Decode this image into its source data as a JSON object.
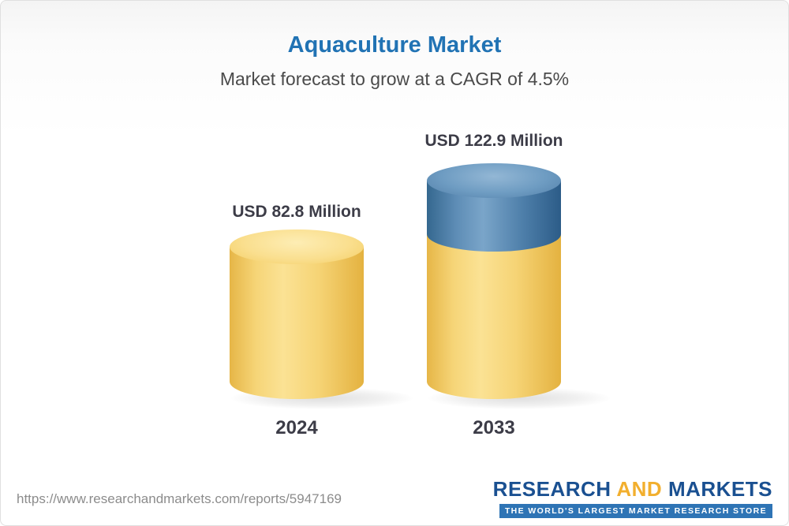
{
  "chart_data": {
    "type": "bar",
    "title": "Aquaculture Market",
    "subtitle": "Market forecast to grow at a CAGR of 4.5%",
    "cagr": "4.5%",
    "unit": "USD Million",
    "categories": [
      "2024",
      "2033"
    ],
    "values": [
      82.8,
      122.9
    ],
    "value_labels": [
      "USD 82.8 Million",
      "USD 122.9 Million"
    ],
    "legend_position": "none",
    "grid": false,
    "colors": {
      "title": "#2173b4",
      "bar_base": "#f5d376",
      "bar_growth": "#5e8db6",
      "label_text": "#3c3c47"
    }
  },
  "footer": {
    "url": "https://www.researchandmarkets.com/reports/5947169",
    "logo": {
      "word1": "RESEARCH",
      "word2": "AND",
      "word3": "MARKETS",
      "tagline": "THE WORLD'S LARGEST MARKET RESEARCH STORE"
    }
  }
}
